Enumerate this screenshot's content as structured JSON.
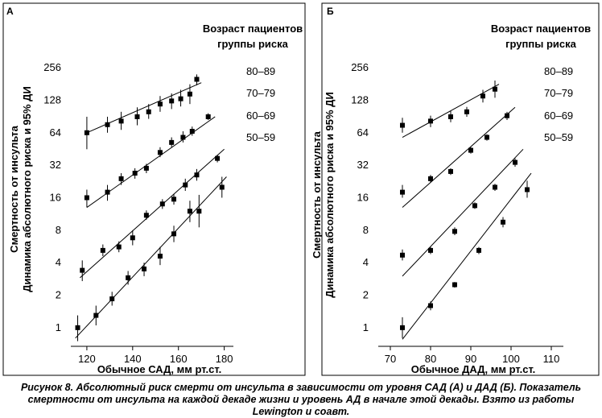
{
  "chart_data": [
    {
      "panel": "А",
      "type": "scatter",
      "xlabel": "Обычное САД, мм рт.ст.",
      "ylabel_line1": "Смертность от инсульта",
      "ylabel_line2": "Динамика абсолютного риска и 95% ДИ",
      "legend_title_line1": "Возраст пациентов",
      "legend_title_line2": "группы риска",
      "legend_placement": "right",
      "x_ticks": [
        "120",
        "140",
        "160",
        "180"
      ],
      "y_ticks": [
        "1",
        "2",
        "4",
        "8",
        "16",
        "32",
        "64",
        "128",
        "256"
      ],
      "xlim": [
        113,
        184
      ],
      "ylim_log2": [
        -0.45,
        8.3
      ],
      "y_scale": "log2",
      "series": [
        {
          "name": "80–89",
          "fit": [
            [
              120,
              64
            ],
            [
              170,
              186
            ]
          ],
          "points": [
            {
              "x": 120,
              "y": 64,
              "lo": 45,
              "hi": 90
            },
            {
              "x": 129,
              "y": 76,
              "lo": 64,
              "hi": 90
            },
            {
              "x": 135,
              "y": 82,
              "lo": 68,
              "hi": 100
            },
            {
              "x": 142,
              "y": 90,
              "lo": 75,
              "hi": 110
            },
            {
              "x": 147,
              "y": 100,
              "lo": 86,
              "hi": 118
            },
            {
              "x": 152,
              "y": 118,
              "lo": 100,
              "hi": 140
            },
            {
              "x": 157,
              "y": 126,
              "lo": 106,
              "hi": 148
            },
            {
              "x": 161,
              "y": 132,
              "lo": 112,
              "hi": 160
            },
            {
              "x": 165,
              "y": 146,
              "lo": 118,
              "hi": 180
            },
            {
              "x": 168,
              "y": 200,
              "lo": 176,
              "hi": 222
            }
          ]
        },
        {
          "name": "70–79",
          "fit": [
            [
              120,
              13
            ],
            [
              176,
              90
            ]
          ],
          "points": [
            {
              "x": 120,
              "y": 16,
              "lo": 13,
              "hi": 19
            },
            {
              "x": 129,
              "y": 18,
              "lo": 15,
              "hi": 21
            },
            {
              "x": 135,
              "y": 24,
              "lo": 21,
              "hi": 27
            },
            {
              "x": 141,
              "y": 27,
              "lo": 24,
              "hi": 30
            },
            {
              "x": 146,
              "y": 30,
              "lo": 27,
              "hi": 33
            },
            {
              "x": 152,
              "y": 42,
              "lo": 38,
              "hi": 47
            },
            {
              "x": 157,
              "y": 52,
              "lo": 47,
              "hi": 58
            },
            {
              "x": 162,
              "y": 58,
              "lo": 52,
              "hi": 66
            },
            {
              "x": 166,
              "y": 66,
              "lo": 60,
              "hi": 73
            },
            {
              "x": 173,
              "y": 90,
              "lo": 84,
              "hi": 97
            }
          ]
        },
        {
          "name": "60–69",
          "fit": [
            [
              117,
              2.9
            ],
            [
              180,
              45
            ]
          ],
          "points": [
            {
              "x": 118,
              "y": 3.4,
              "lo": 2.7,
              "hi": 4.2
            },
            {
              "x": 127,
              "y": 5.2,
              "lo": 4.6,
              "hi": 5.9
            },
            {
              "x": 134,
              "y": 5.6,
              "lo": 5.0,
              "hi": 6.3
            },
            {
              "x": 140,
              "y": 6.8,
              "lo": 5.8,
              "hi": 8.0
            },
            {
              "x": 146,
              "y": 11,
              "lo": 10,
              "hi": 12.2
            },
            {
              "x": 153,
              "y": 14,
              "lo": 12.6,
              "hi": 15.5
            },
            {
              "x": 158,
              "y": 15.5,
              "lo": 13.8,
              "hi": 17.3
            },
            {
              "x": 163,
              "y": 21,
              "lo": 18.5,
              "hi": 24
            },
            {
              "x": 168,
              "y": 26,
              "lo": 23,
              "hi": 29.5
            },
            {
              "x": 177,
              "y": 37,
              "lo": 34,
              "hi": 40
            }
          ]
        },
        {
          "name": "50–59",
          "fit": [
            [
              115,
              0.8
            ],
            [
              181,
              25
            ]
          ],
          "points": [
            {
              "x": 116,
              "y": 1.0,
              "lo": 0.75,
              "hi": 1.3
            },
            {
              "x": 124,
              "y": 1.3,
              "lo": 1.05,
              "hi": 1.6
            },
            {
              "x": 131,
              "y": 1.85,
              "lo": 1.6,
              "hi": 2.15
            },
            {
              "x": 138,
              "y": 2.9,
              "lo": 2.5,
              "hi": 3.35
            },
            {
              "x": 145,
              "y": 3.5,
              "lo": 3.0,
              "hi": 4.0
            },
            {
              "x": 152,
              "y": 4.6,
              "lo": 3.8,
              "hi": 5.6
            },
            {
              "x": 158,
              "y": 7.4,
              "lo": 6.2,
              "hi": 8.8
            },
            {
              "x": 165,
              "y": 12,
              "lo": 9.5,
              "hi": 15
            },
            {
              "x": 169,
              "y": 12,
              "lo": 8.5,
              "hi": 17
            },
            {
              "x": 179,
              "y": 20,
              "lo": 16,
              "hi": 25
            }
          ]
        }
      ]
    },
    {
      "panel": "Б",
      "type": "scatter",
      "xlabel": "Обычное ДАД, мм рт.ст.",
      "ylabel_line1": "Смертность от инсульта",
      "ylabel_line2": "Динамика абсолютного риска и 95% ДИ",
      "legend_title_line1": "Возраст пациентов",
      "legend_title_line2": "группы риска",
      "legend_placement": "right",
      "x_ticks": [
        "70",
        "80",
        "90",
        "100",
        "110"
      ],
      "y_ticks": [
        "1",
        "2",
        "4",
        "8",
        "16",
        "32",
        "64",
        "128",
        "256"
      ],
      "xlim": [
        67,
        113
      ],
      "ylim_log2": [
        -0.45,
        8.3
      ],
      "y_scale": "log2",
      "series": [
        {
          "name": "80–89",
          "fit": [
            [
              73,
              58
            ],
            [
              97,
              180
            ]
          ],
          "points": [
            {
              "x": 73,
              "y": 75,
              "lo": 64,
              "hi": 88
            },
            {
              "x": 80,
              "y": 82,
              "lo": 72,
              "hi": 92
            },
            {
              "x": 85,
              "y": 90,
              "lo": 80,
              "hi": 102
            },
            {
              "x": 89,
              "y": 100,
              "lo": 90,
              "hi": 111
            },
            {
              "x": 93,
              "y": 140,
              "lo": 122,
              "hi": 160
            },
            {
              "x": 96,
              "y": 162,
              "lo": 135,
              "hi": 195
            }
          ]
        },
        {
          "name": "70–79",
          "fit": [
            [
              73,
              13
            ],
            [
              101,
              110
            ]
          ],
          "points": [
            {
              "x": 73,
              "y": 18,
              "lo": 16,
              "hi": 21
            },
            {
              "x": 80,
              "y": 24,
              "lo": 22,
              "hi": 26
            },
            {
              "x": 85,
              "y": 28,
              "lo": 26,
              "hi": 30
            },
            {
              "x": 90,
              "y": 44,
              "lo": 41,
              "hi": 47
            },
            {
              "x": 94,
              "y": 58,
              "lo": 54,
              "hi": 62
            },
            {
              "x": 99,
              "y": 92,
              "lo": 84,
              "hi": 100
            }
          ]
        },
        {
          "name": "60–69",
          "fit": [
            [
              73,
              3.0
            ],
            [
              103,
              45
            ]
          ],
          "points": [
            {
              "x": 73,
              "y": 4.7,
              "lo": 4.2,
              "hi": 5.3
            },
            {
              "x": 80,
              "y": 5.2,
              "lo": 4.8,
              "hi": 5.6
            },
            {
              "x": 86,
              "y": 7.8,
              "lo": 7.2,
              "hi": 8.5
            },
            {
              "x": 91,
              "y": 13.5,
              "lo": 12.6,
              "hi": 14.5
            },
            {
              "x": 96,
              "y": 20,
              "lo": 18.5,
              "hi": 21.5
            },
            {
              "x": 101,
              "y": 34,
              "lo": 31,
              "hi": 37
            }
          ]
        },
        {
          "name": "50–59",
          "fit": [
            [
              73,
              0.78
            ],
            [
              105,
              27
            ]
          ],
          "points": [
            {
              "x": 73,
              "y": 1.0,
              "lo": 0.8,
              "hi": 1.25
            },
            {
              "x": 80,
              "y": 1.6,
              "lo": 1.45,
              "hi": 1.75
            },
            {
              "x": 86,
              "y": 2.5,
              "lo": 2.35,
              "hi": 2.65
            },
            {
              "x": 92,
              "y": 5.2,
              "lo": 4.8,
              "hi": 5.6
            },
            {
              "x": 98,
              "y": 9.5,
              "lo": 8.5,
              "hi": 10.6
            },
            {
              "x": 104,
              "y": 19,
              "lo": 16,
              "hi": 23
            }
          ]
        }
      ]
    }
  ],
  "caption": "Рисунок 8. Абсолютный риск смерти от инсульта в зависимости от уровня САД (А) и ДАД (Б). Показатель смертности от инсульта на каждой декаде жизни и уровень АД в начале этой декады. Взято из работы Lewington и соавт."
}
